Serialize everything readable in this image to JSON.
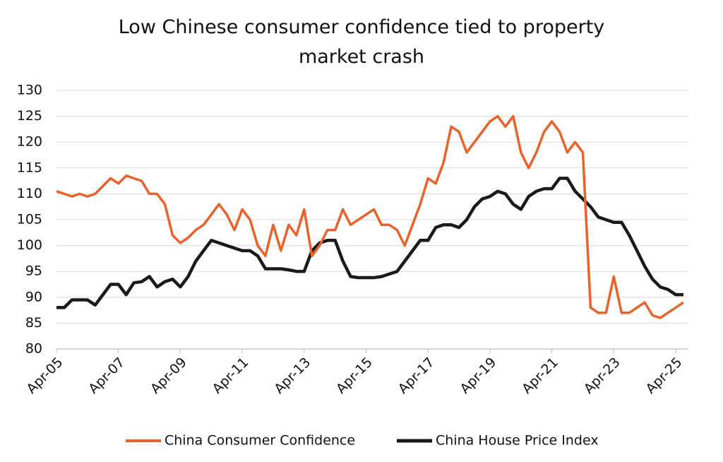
{
  "chart_data": {
    "type": "line",
    "title": "Low Chinese consumer confidence tied to property market crash",
    "categories": [
      "Apr-05",
      null,
      null,
      null,
      null,
      null,
      null,
      null,
      "Apr-07",
      null,
      null,
      null,
      null,
      null,
      null,
      null,
      "Apr-09",
      null,
      null,
      null,
      null,
      null,
      null,
      null,
      "Apr-11",
      null,
      null,
      null,
      null,
      null,
      null,
      null,
      "Apr-13",
      null,
      null,
      null,
      null,
      null,
      null,
      null,
      "Apr-15",
      null,
      null,
      null,
      null,
      null,
      null,
      null,
      "Apr-17",
      null,
      null,
      null,
      null,
      null,
      null,
      null,
      "Apr-19",
      null,
      null,
      null,
      null,
      null,
      null,
      null,
      "Apr-21",
      null,
      null,
      null,
      null,
      null,
      null,
      null,
      "Apr-23",
      null,
      null,
      null,
      null,
      null,
      null,
      null,
      "Apr-25",
      null
    ],
    "series": [
      {
        "name": "China Consumer Confidence",
        "color": "#e8622c",
        "values": [
          110.5,
          110,
          109.5,
          110,
          109.5,
          110,
          111.5,
          113,
          112,
          113.5,
          113,
          112.5,
          110,
          110,
          108,
          102,
          100.5,
          101.5,
          103,
          104,
          106,
          108,
          106,
          103,
          107,
          105,
          100,
          98,
          104,
          99,
          104,
          102,
          107,
          98,
          100,
          103,
          103,
          107,
          104,
          105,
          106,
          107,
          104,
          104,
          103,
          100,
          104,
          108,
          113,
          112,
          116,
          123,
          122,
          118,
          120,
          122,
          124,
          125,
          123,
          125,
          118,
          115,
          118,
          122,
          124,
          122,
          118,
          120,
          118,
          88,
          87,
          87,
          94,
          87,
          87,
          88,
          89,
          86.5,
          86,
          87,
          88,
          89
        ]
      },
      {
        "name": "China House Price Index",
        "color": "#1a1a1a",
        "values": [
          88,
          88,
          89.5,
          89.5,
          89.5,
          88.5,
          90.5,
          92.5,
          92.5,
          90.5,
          92.8,
          93,
          94,
          92,
          93,
          93.5,
          92,
          94,
          97,
          99,
          101,
          100.5,
          100,
          99.5,
          99,
          99,
          98,
          95.5,
          95.5,
          95.5,
          95.3,
          95,
          95,
          99,
          100.5,
          101,
          101,
          97,
          94,
          93.8,
          93.8,
          93.8,
          94,
          94.5,
          95,
          97,
          99,
          101,
          101,
          103.5,
          104,
          104,
          103.5,
          105,
          107.5,
          109,
          109.5,
          110.5,
          110,
          108,
          107,
          109.5,
          110.5,
          111,
          111,
          113,
          113,
          110.5,
          109,
          107.5,
          105.5,
          105,
          104.5,
          104.5,
          102,
          99,
          96,
          93.5,
          92,
          91.5,
          90.5,
          90.5
        ]
      }
    ],
    "ylim": [
      80,
      130
    ],
    "yticks": [
      80,
      85,
      90,
      95,
      100,
      105,
      110,
      115,
      120,
      125,
      130
    ],
    "grid": true
  }
}
